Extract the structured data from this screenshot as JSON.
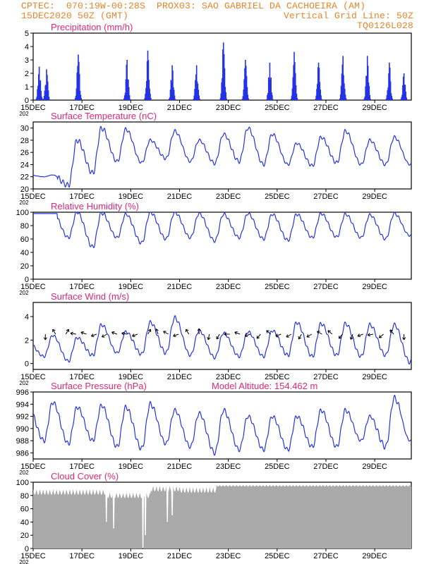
{
  "header": {
    "line1_left": "CPTEC:  070:19W-00:28S  PROX03: SAO GABRIEL DA CACHOEIRA (AM)",
    "line2_left": "15DEC2020 50Z (GMT)",
    "line2_right": "Vertical Grid Line: 50Z",
    "line3_right": "TQ0126L028"
  },
  "colors": {
    "title": "#e0287a",
    "line": "#2433e6",
    "cloud": "#aaaaaa",
    "header": "#e8842a"
  },
  "x_axis": {
    "labels": [
      "15DEC",
      "17DEC",
      "19DEC",
      "21DEC",
      "23DEC",
      "25DEC",
      "27DEC",
      "29DEC"
    ],
    "year_fragment": "202",
    "days_span": 15.5
  },
  "chart_data": [
    {
      "type": "bar",
      "title": "Precipitation (mm/h)",
      "ylim": [
        0,
        5
      ],
      "yticks": [
        "0",
        "1",
        "2",
        "3",
        "4",
        "5"
      ],
      "day_bursts": [
        {
          "day": 0.25,
          "peak": 2.5
        },
        {
          "day": 0.55,
          "peak": 2.3
        },
        {
          "day": 1.85,
          "peak": 3.4
        },
        {
          "day": 3.85,
          "peak": 3.0
        },
        {
          "day": 4.7,
          "peak": 3.7
        },
        {
          "day": 5.7,
          "peak": 2.6
        },
        {
          "day": 6.7,
          "peak": 2.6
        },
        {
          "day": 7.8,
          "peak": 4.3
        },
        {
          "day": 8.7,
          "peak": 3.0
        },
        {
          "day": 9.7,
          "peak": 2.8
        },
        {
          "day": 10.7,
          "peak": 3.6
        },
        {
          "day": 11.7,
          "peak": 2.8
        },
        {
          "day": 12.7,
          "peak": 3.3
        },
        {
          "day": 13.7,
          "peak": 3.3
        },
        {
          "day": 14.6,
          "peak": 2.8
        },
        {
          "day": 15.2,
          "peak": 2.0
        }
      ]
    },
    {
      "type": "line",
      "title": "Surface Temperature (nC)",
      "ylim": [
        20,
        31
      ],
      "yticks": [
        "20",
        "22",
        "24",
        "26",
        "28",
        "30"
      ],
      "start_value": 22.3,
      "daily_min": [
        22.0,
        20.6,
        22.6,
        24.5,
        24.3,
        25.0,
        24.5,
        24.2,
        24.5,
        24.0,
        24.0,
        23.8,
        24.3,
        24.0,
        24.0,
        24.0
      ],
      "daily_max": [
        null,
        28.0,
        30.0,
        29.8,
        28.0,
        29.5,
        28.0,
        29.0,
        30.0,
        29.0,
        27.5,
        28.5,
        29.5,
        28.0,
        28.5,
        26.3
      ]
    },
    {
      "type": "line",
      "title": "Relative Humidity (%)",
      "ylim": [
        0,
        100
      ],
      "yticks": [
        "0",
        "20",
        "40",
        "60",
        "80",
        "100"
      ],
      "start_value": 98,
      "daily_min": [
        null,
        62,
        48,
        62,
        54,
        60,
        62,
        57,
        62,
        60,
        58,
        62,
        63,
        62,
        60,
        65
      ],
      "daily_max": [
        100,
        100,
        99,
        97,
        100,
        100,
        98,
        97,
        98,
        97,
        97,
        98,
        97,
        96,
        98,
        88
      ]
    },
    {
      "type": "line",
      "title": "Surface Wind (m/s)",
      "ylim": [
        -0.5,
        5.2
      ],
      "yticks": [
        "0",
        "2",
        "4"
      ],
      "start_value": 1.8,
      "daily_min": [
        0.6,
        0.2,
        0.7,
        0.9,
        0.8,
        0.9,
        0.7,
        0.5,
        0.6,
        0.6,
        0.7,
        0.6,
        0.7,
        0.6,
        0.7,
        0.1
      ],
      "daily_max": [
        2.4,
        2.2,
        3.3,
        2.7,
        3.5,
        3.9,
        2.8,
        2.6,
        2.7,
        2.8,
        3.5,
        3.4,
        3.4,
        3.3,
        3.3,
        3.0
      ],
      "vector_angles": [
        -90,
        120,
        60,
        170,
        160,
        200,
        210,
        160,
        170,
        200,
        60,
        110,
        150,
        200,
        120,
        90,
        260,
        240,
        180,
        160,
        200,
        230,
        140,
        200,
        210,
        240,
        210,
        150,
        140,
        230,
        250,
        200,
        190,
        220,
        130,
        270
      ]
    },
    {
      "type": "line",
      "title": "Surface Pressure (hPa)",
      "annotation": "Model Altitude: 154.462 m",
      "ylim": [
        985,
        996
      ],
      "yticks": [
        "986",
        "988",
        "990",
        "992",
        "994",
        "996"
      ],
      "start_value": 993.5,
      "daily_min": [
        988.0,
        987.5,
        988.0,
        987.0,
        986.7,
        987.5,
        987.0,
        986.0,
        986.5,
        986.5,
        986.5,
        987.0,
        987.0,
        988.0,
        987.0,
        988.0
      ],
      "daily_max": [
        994.3,
        993.5,
        993.8,
        993.5,
        994.0,
        993.0,
        992.5,
        993.0,
        992.0,
        992.0,
        992.0,
        993.0,
        993.0,
        992.0,
        995.0,
        990.0
      ]
    },
    {
      "type": "area",
      "title": "Cloud Cover (%)",
      "ylim": [
        0,
        100
      ],
      "yticks": [
        "0",
        "20",
        "40",
        "60",
        "80",
        "100"
      ],
      "segments": [
        {
          "from": 0.0,
          "to": 3.0,
          "value": 90
        },
        {
          "from": 3.0,
          "to": 4.8,
          "value": 85
        },
        {
          "from": 4.8,
          "to": 6.0,
          "value": 95
        },
        {
          "from": 6.0,
          "to": 7.5,
          "value": 93
        },
        {
          "from": 7.5,
          "to": 15.5,
          "value": 96
        }
      ],
      "dips": [
        {
          "day": 3.0,
          "value": 40
        },
        {
          "day": 3.3,
          "value": 30
        },
        {
          "day": 4.5,
          "value": 0
        },
        {
          "day": 4.6,
          "value": 20
        },
        {
          "day": 5.5,
          "value": 40
        },
        {
          "day": 5.7,
          "value": 50
        }
      ]
    }
  ]
}
